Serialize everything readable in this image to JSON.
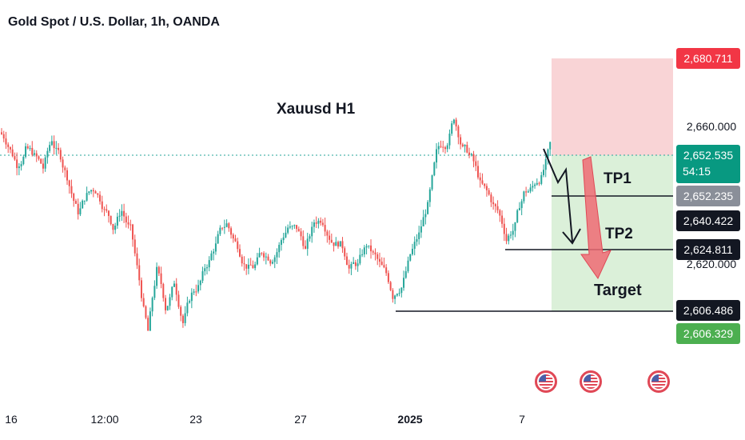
{
  "header": {
    "title": "Gold Spot / U.S. Dollar, 1h, OANDA"
  },
  "chart_data": {
    "type": "candlestick",
    "title": "Xauusd H1",
    "x_ticks": [
      "16",
      "12:00",
      "23",
      "27",
      "2025",
      "7"
    ],
    "y_ticks": [
      2660.0,
      2620.0
    ],
    "ylim": [
      2595.0,
      2688.0
    ],
    "colors": {
      "up": "#26a69a",
      "down": "#ef5350",
      "stop_zone": "#f9d4d6",
      "profit_zone": "#dbf0d9"
    },
    "closes": [
      2657,
      2650,
      2655,
      2652,
      2648,
      2656,
      2651,
      2645,
      2635,
      2640,
      2643,
      2638,
      2632,
      2636,
      2630,
      2615,
      2600,
      2618,
      2608,
      2614,
      2606,
      2610,
      2616,
      2621,
      2628,
      2632,
      2627,
      2624,
      2619,
      2622,
      2624,
      2627,
      2632,
      2629,
      2625,
      2631,
      2635,
      2630,
      2627,
      2622,
      2619,
      2625,
      2621,
      2617,
      2613,
      2616,
      2621,
      2628,
      2638,
      2650,
      2658,
      2663,
      2656,
      2651,
      2644,
      2639,
      2636,
      2629,
      2632,
      2641,
      2643,
      2648,
      2653
    ],
    "current_price": {
      "label": "2,652.535",
      "countdown": "54:15"
    },
    "price_labels": {
      "stop": "2,680.711",
      "level_2660": "2,660.000",
      "tp1": "2,652.235",
      "tp1_line": "2,640.422",
      "tp2": "2,624.811",
      "level_2620": "2,620.000",
      "target": "2,606.486",
      "target_zone": "2,606.329"
    },
    "annotations": {
      "tp1": "TP1",
      "tp2": "TP2",
      "target": "Target"
    },
    "event_icons": [
      "us-flag",
      "us-flag",
      "us-flag"
    ]
  }
}
